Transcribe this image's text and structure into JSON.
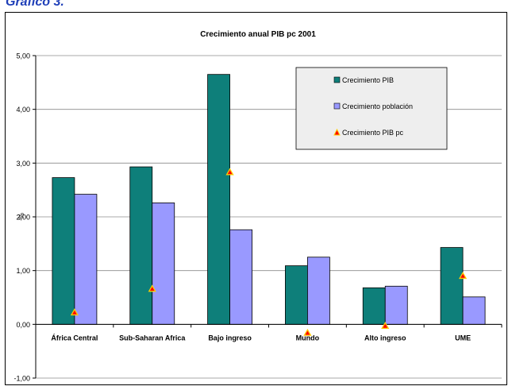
{
  "page": {
    "heading": "Gráfico 3."
  },
  "chart_data": {
    "type": "bar",
    "title": "Crecimiento anual PIB pc 2001",
    "xlabel": "",
    "ylabel": "%",
    "ylim": [
      -1,
      5
    ],
    "yticks": [
      "-1,00",
      "0,00",
      "1,00",
      "2,00",
      "3,00",
      "4,00",
      "5,00"
    ],
    "grid": true,
    "legend_position": "top-right",
    "categories": [
      "África Central",
      "Sub-Saharan Africa",
      "Bajo ingreso",
      "Mundo",
      "Alto ingreso",
      "UME"
    ],
    "series": [
      {
        "name": "Crecimiento PIB",
        "type": "bar",
        "color": "#0e7f7a",
        "values": [
          2.73,
          2.93,
          4.65,
          1.09,
          0.68,
          1.43
        ]
      },
      {
        "name": "Crecimiento población",
        "type": "bar",
        "color": "#9999ff",
        "values": [
          2.42,
          2.26,
          1.76,
          1.25,
          0.71,
          0.51
        ]
      },
      {
        "name": "Crecimiento PIB pc",
        "type": "marker",
        "color": "#ff0000",
        "values": [
          0.22,
          0.66,
          2.83,
          -0.16,
          -0.03,
          0.9
        ]
      }
    ]
  }
}
